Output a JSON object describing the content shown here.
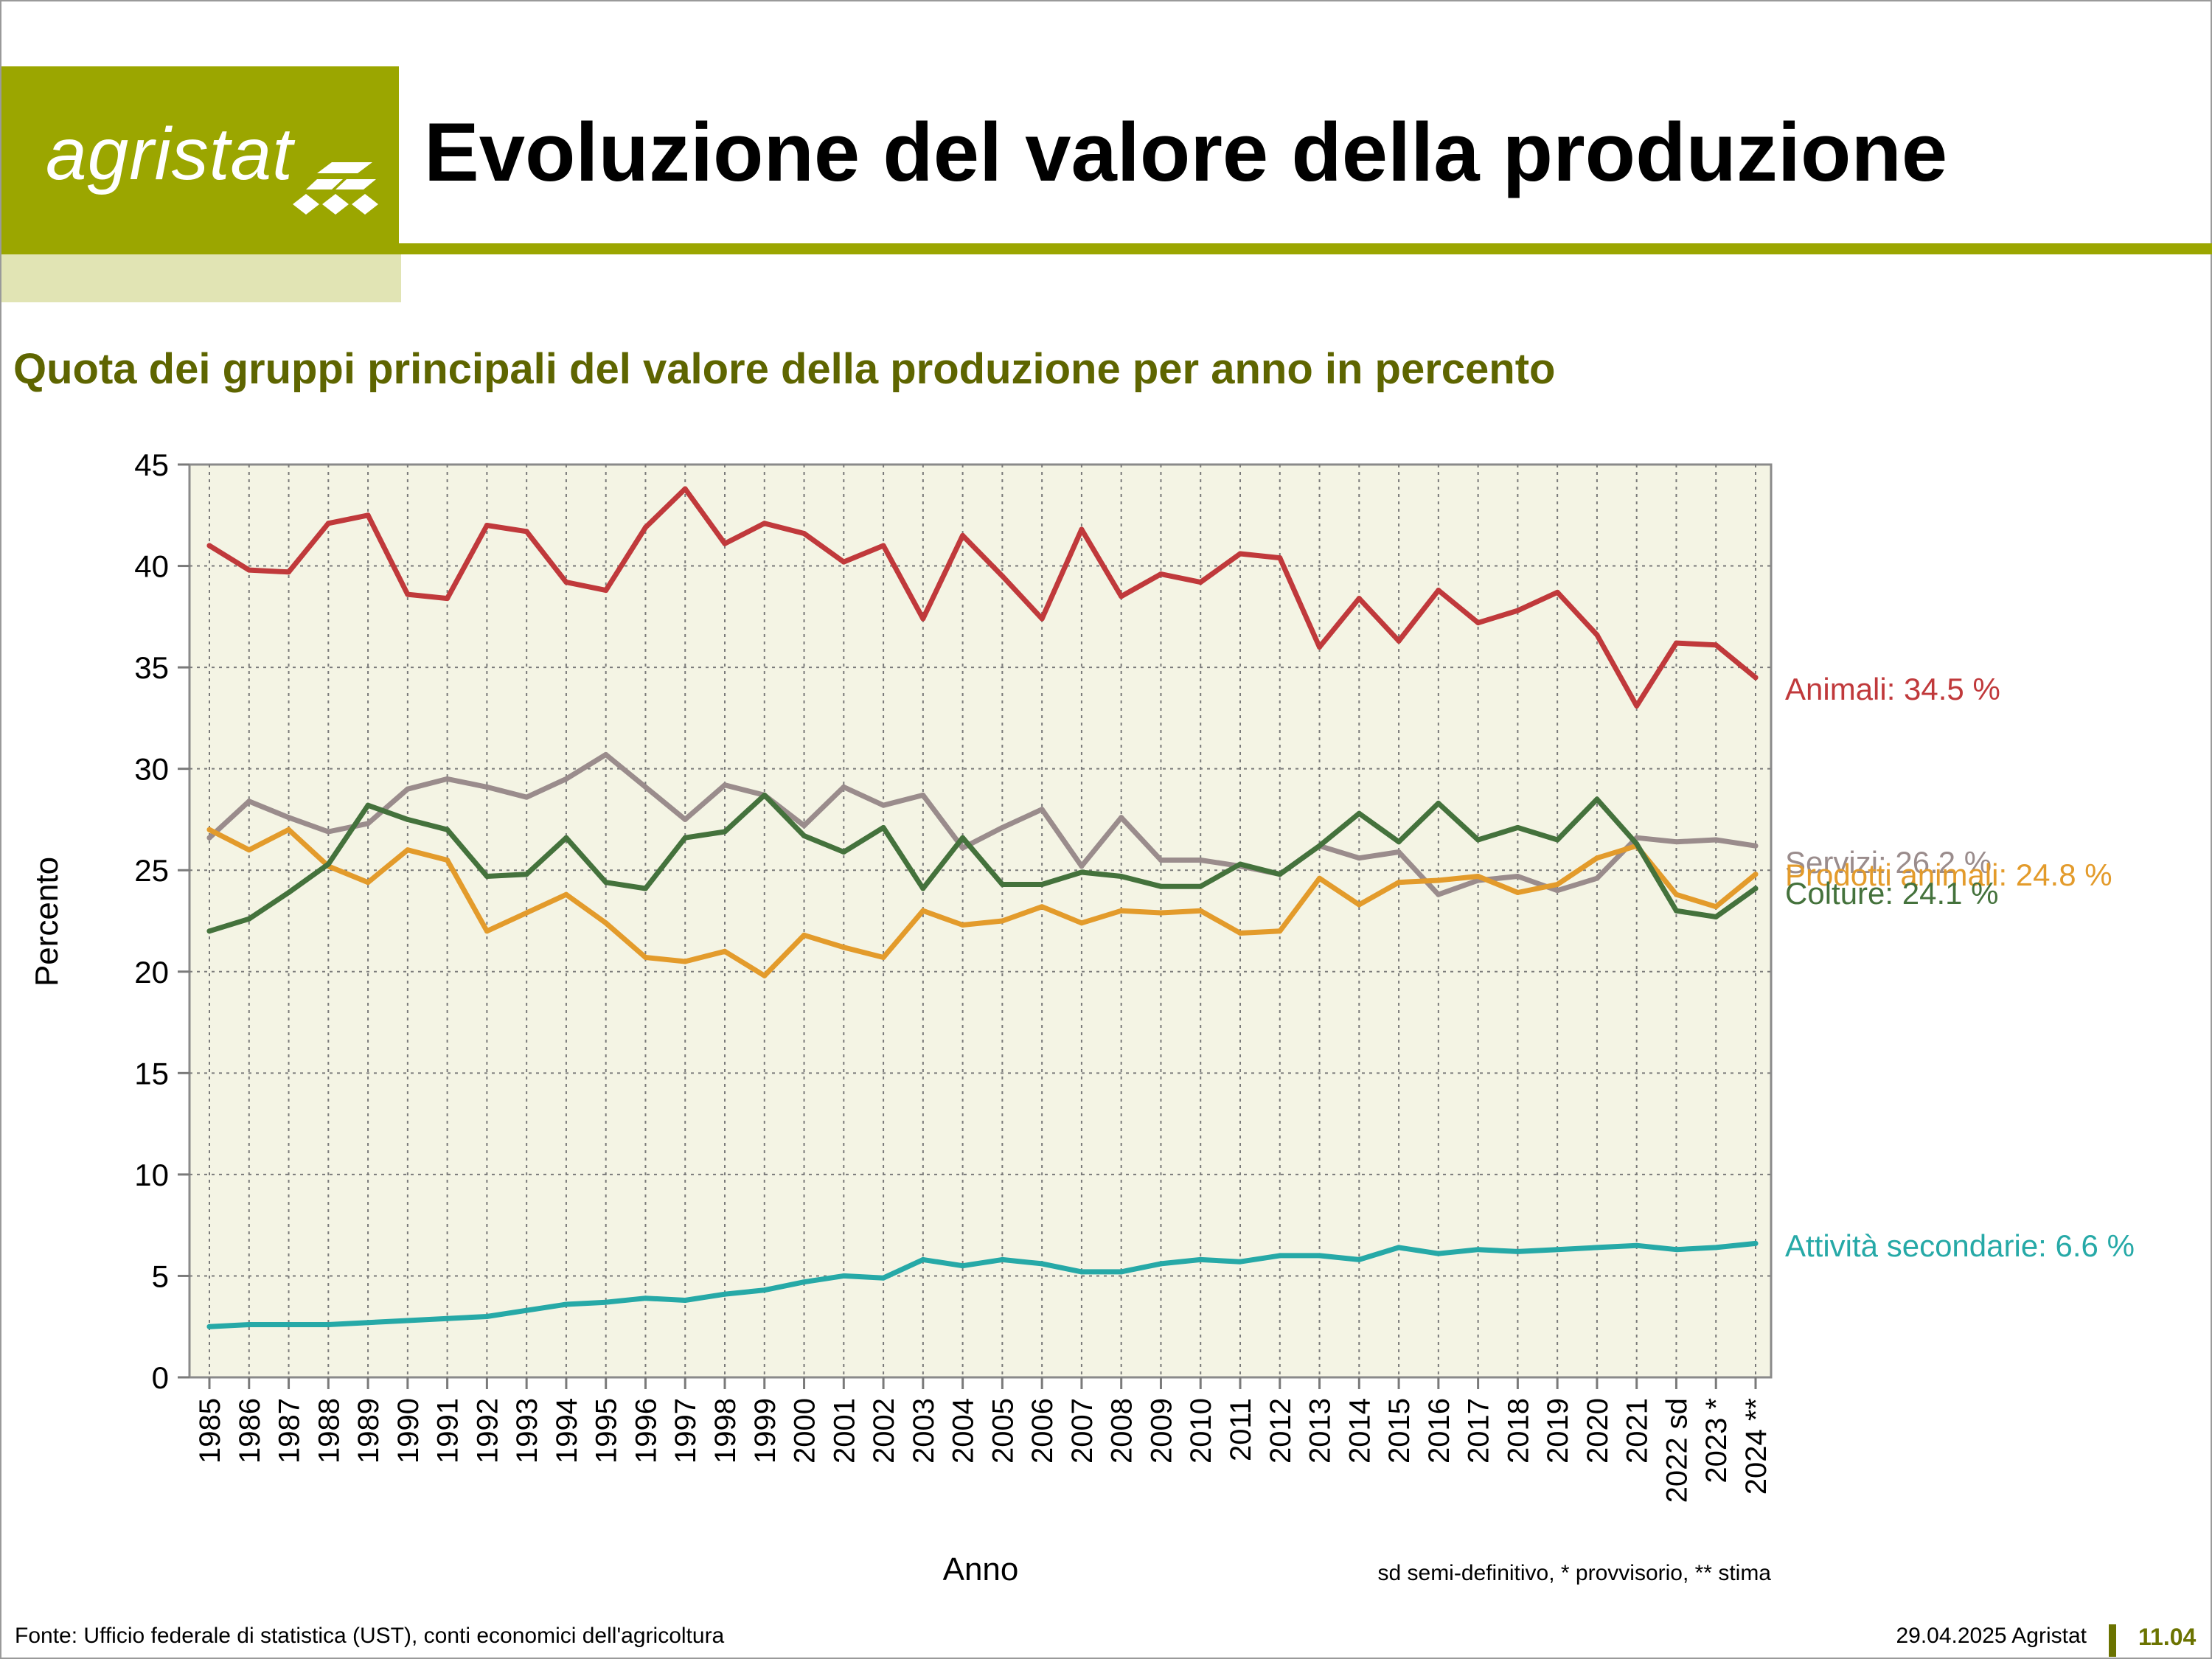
{
  "header": {
    "logo_text": "agristat",
    "title": "Evoluzione del valore della produzione",
    "subtitle": "Quota dei gruppi principali del valore della produzione per anno in percento"
  },
  "chart_data": {
    "type": "line",
    "xlabel": "Anno",
    "ylabel": "Percento",
    "ylim": [
      0,
      45
    ],
    "yticks": [
      0,
      5,
      10,
      15,
      20,
      25,
      30,
      35,
      40,
      45
    ],
    "grid": true,
    "categories": [
      "1985",
      "1986",
      "1987",
      "1988",
      "1989",
      "1990",
      "1991",
      "1992",
      "1993",
      "1994",
      "1995",
      "1996",
      "1997",
      "1998",
      "1999",
      "2000",
      "2001",
      "2002",
      "2003",
      "2004",
      "2005",
      "2006",
      "2007",
      "2008",
      "2009",
      "2010",
      "2011",
      "2012",
      "2013",
      "2014",
      "2015",
      "2016",
      "2017",
      "2018",
      "2019",
      "2020",
      "2021",
      "2022 sd",
      "2023 *",
      "2024 **"
    ],
    "note": "sd semi-definitivo, * provvisorio, ** stima",
    "series": [
      {
        "name": "Animali",
        "label": "Animali: 34.5 %",
        "color": "#c0393b",
        "values": [
          41.0,
          39.8,
          39.7,
          42.1,
          42.5,
          38.6,
          38.4,
          42.0,
          41.7,
          39.2,
          38.8,
          41.9,
          43.8,
          41.1,
          42.1,
          41.6,
          40.2,
          41.0,
          37.4,
          41.5,
          39.5,
          37.4,
          41.8,
          38.5,
          39.6,
          39.2,
          40.6,
          40.4,
          36.0,
          38.4,
          36.3,
          38.8,
          37.2,
          37.8,
          38.7,
          36.6,
          33.1,
          36.2,
          36.1,
          34.5
        ]
      },
      {
        "name": "Servizi",
        "label": "Servizi: 26.2 %",
        "color": "#9a8c8c",
        "values": [
          26.6,
          28.4,
          27.6,
          26.9,
          27.3,
          29.0,
          29.5,
          29.1,
          28.6,
          29.5,
          30.7,
          29.1,
          27.5,
          29.2,
          28.7,
          27.2,
          29.1,
          28.2,
          28.7,
          26.1,
          27.1,
          28.0,
          25.2,
          27.6,
          25.5,
          25.5,
          25.2,
          24.8,
          26.2,
          25.6,
          25.9,
          23.8,
          24.5,
          24.7,
          24.0,
          24.6,
          26.6,
          26.4,
          26.5,
          26.2
        ]
      },
      {
        "name": "Prodotti animali",
        "label": "Prodotti animali: 24.8 %",
        "color": "#e39b2b",
        "values": [
          27.0,
          26.0,
          27.0,
          25.2,
          24.4,
          26.0,
          25.5,
          22.0,
          22.9,
          23.8,
          22.4,
          20.7,
          20.5,
          21.0,
          19.8,
          21.8,
          21.2,
          20.7,
          23.0,
          22.3,
          22.5,
          23.2,
          22.4,
          23.0,
          22.9,
          23.0,
          21.9,
          22.0,
          24.6,
          23.3,
          24.4,
          24.5,
          24.7,
          23.9,
          24.3,
          25.6,
          26.2,
          23.8,
          23.2,
          24.8
        ]
      },
      {
        "name": "Colture",
        "label": "Colture: 24.1 %",
        "color": "#44723c",
        "values": [
          22.0,
          22.6,
          23.9,
          25.3,
          28.2,
          27.5,
          27.0,
          24.7,
          24.8,
          26.6,
          24.4,
          24.1,
          26.6,
          26.9,
          28.7,
          26.7,
          25.9,
          27.1,
          24.1,
          26.6,
          24.3,
          24.3,
          24.9,
          24.7,
          24.2,
          24.2,
          25.3,
          24.8,
          26.2,
          27.8,
          26.4,
          28.3,
          26.5,
          27.1,
          26.5,
          28.5,
          26.3,
          23.0,
          22.7,
          24.1
        ]
      },
      {
        "name": "Attività secondarie",
        "label": "Attività secondarie: 6.6 %",
        "color": "#26a9a7",
        "values": [
          2.5,
          2.6,
          2.6,
          2.6,
          2.7,
          2.8,
          2.9,
          3.0,
          3.3,
          3.6,
          3.7,
          3.9,
          3.8,
          4.1,
          4.3,
          4.7,
          5.0,
          4.9,
          5.8,
          5.5,
          5.8,
          5.6,
          5.2,
          5.2,
          5.6,
          5.8,
          5.7,
          6.0,
          6.0,
          5.8,
          6.4,
          6.1,
          6.3,
          6.2,
          6.3,
          6.4,
          6.5,
          6.3,
          6.4,
          6.6
        ]
      }
    ]
  },
  "footer": {
    "source": "Fonte: Ufficio federale di statistica (UST), conti economici dell'agricoltura",
    "date": "29.04.2025 Agristat",
    "page": "11.04"
  }
}
